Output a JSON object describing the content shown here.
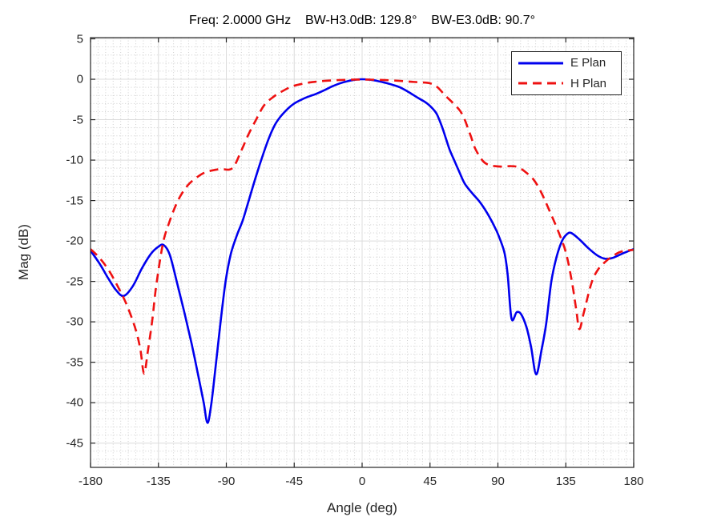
{
  "figure": {
    "title": "Freq: 2.0000 GHz    BW-H3.0dB: 129.8°    BW-E3.0dB: 90.7°"
  },
  "chart_data": {
    "type": "line",
    "title": "Freq: 2.0000 GHz    BW-H3.0dB: 129.8°    BW-E3.0dB: 90.7°",
    "xlabel": "Angle (deg)",
    "ylabel": "Mag (dB)",
    "xlim": [
      -180,
      180
    ],
    "ylim": [
      -48,
      5.15
    ],
    "x_ticks": [
      -180,
      -135,
      -90,
      -45,
      0,
      45,
      90,
      135,
      180
    ],
    "x_tick_labels": [
      "-180",
      "-135",
      "-90",
      "-45",
      "0",
      "45",
      "90",
      "135",
      "180"
    ],
    "y_ticks": [
      5,
      0,
      -5,
      -10,
      -15,
      -20,
      -25,
      -30,
      -35,
      -40,
      -45
    ],
    "y_tick_labels": [
      "5",
      "0",
      "-5",
      "-10",
      "-15",
      "-20",
      "-25",
      "-30",
      "-35",
      "-40",
      "-45"
    ],
    "grid": {
      "major": true,
      "minor": true,
      "minor_x_step_deg": 5,
      "minor_y_step_db": 1,
      "legend_position": "top-right"
    },
    "colors": {
      "e_plan": "#0000EE",
      "h_plan": "#EE1111",
      "grid_major": "#dcdcdc",
      "grid_minor": "#cfcfcf",
      "axis": "#262626"
    },
    "legend": {
      "entries": [
        {
          "label": "E Plan",
          "series": "e_plan",
          "style": "solid"
        },
        {
          "label": "H Plan",
          "series": "h_plan",
          "style": "dashed"
        }
      ]
    },
    "series": [
      {
        "name": "E Plan",
        "key": "e_plan",
        "style": "solid",
        "points": [
          [
            -180,
            -21.2
          ],
          [
            -174,
            -22.8
          ],
          [
            -168,
            -24.7
          ],
          [
            -163,
            -26.1
          ],
          [
            -158,
            -26.8
          ],
          [
            -152,
            -25.6
          ],
          [
            -146,
            -23.4
          ],
          [
            -140,
            -21.6
          ],
          [
            -135,
            -20.7
          ],
          [
            -131.5,
            -20.5
          ],
          [
            -127.5,
            -21.7
          ],
          [
            -123,
            -24.9
          ],
          [
            -118,
            -28.7
          ],
          [
            -113,
            -32.7
          ],
          [
            -108,
            -37.2
          ],
          [
            -105,
            -40.0
          ],
          [
            -102.5,
            -42.5
          ],
          [
            -100,
            -40.2
          ],
          [
            -97,
            -35.4
          ],
          [
            -94,
            -30.3
          ],
          [
            -90.5,
            -25.0
          ],
          [
            -87,
            -21.6
          ],
          [
            -83,
            -19.3
          ],
          [
            -79,
            -17.4
          ],
          [
            -75,
            -14.9
          ],
          [
            -70,
            -11.8
          ],
          [
            -66,
            -9.5
          ],
          [
            -62,
            -7.4
          ],
          [
            -58,
            -5.7
          ],
          [
            -54,
            -4.6
          ],
          [
            -49,
            -3.6
          ],
          [
            -45,
            -3.0
          ],
          [
            -40,
            -2.5
          ],
          [
            -35,
            -2.1
          ],
          [
            -31,
            -1.85
          ],
          [
            -25,
            -1.35
          ],
          [
            -20,
            -0.9
          ],
          [
            -15,
            -0.52
          ],
          [
            -10,
            -0.25
          ],
          [
            -5,
            -0.07
          ],
          [
            0,
            0
          ],
          [
            5,
            -0.06
          ],
          [
            10,
            -0.2
          ],
          [
            15,
            -0.42
          ],
          [
            20,
            -0.68
          ],
          [
            25,
            -1.0
          ],
          [
            31,
            -1.6
          ],
          [
            37,
            -2.3
          ],
          [
            42,
            -2.85
          ],
          [
            45,
            -3.3
          ],
          [
            48,
            -3.9
          ],
          [
            50,
            -4.5
          ],
          [
            53,
            -5.9
          ],
          [
            55.5,
            -7.3
          ],
          [
            58,
            -8.7
          ],
          [
            61,
            -10.0
          ],
          [
            64.5,
            -11.5
          ],
          [
            68,
            -12.9
          ],
          [
            73,
            -14.1
          ],
          [
            78.5,
            -15.3
          ],
          [
            84,
            -16.9
          ],
          [
            89,
            -18.7
          ],
          [
            92,
            -20.1
          ],
          [
            94.5,
            -21.6
          ],
          [
            96.5,
            -24.2
          ],
          [
            99,
            -29.6
          ],
          [
            102.5,
            -28.8
          ],
          [
            105.5,
            -29.1
          ],
          [
            109,
            -30.7
          ],
          [
            112,
            -33.1
          ],
          [
            115.4,
            -36.5
          ],
          [
            119,
            -33.4
          ],
          [
            122,
            -30.2
          ],
          [
            125.4,
            -25.0
          ],
          [
            129,
            -21.9
          ],
          [
            132.5,
            -20.0
          ],
          [
            135.5,
            -19.2
          ],
          [
            138.5,
            -19.0
          ],
          [
            144,
            -19.8
          ],
          [
            150,
            -20.9
          ],
          [
            156,
            -21.8
          ],
          [
            161,
            -22.2
          ],
          [
            166,
            -22.1
          ],
          [
            172,
            -21.6
          ],
          [
            180,
            -21.0
          ]
        ]
      },
      {
        "name": "H Plan",
        "key": "h_plan",
        "style": "dashed",
        "points": [
          [
            -180,
            -21.0
          ],
          [
            -174,
            -22.1
          ],
          [
            -168,
            -23.6
          ],
          [
            -162,
            -25.6
          ],
          [
            -156,
            -27.9
          ],
          [
            -150,
            -31.0
          ],
          [
            -147,
            -33.4
          ],
          [
            -144.5,
            -36.4
          ],
          [
            -142,
            -33.6
          ],
          [
            -139,
            -29.7
          ],
          [
            -136.5,
            -25.6
          ],
          [
            -132,
            -20.3
          ],
          [
            -128,
            -17.8
          ],
          [
            -124,
            -15.8
          ],
          [
            -120,
            -14.3
          ],
          [
            -115,
            -13.0
          ],
          [
            -110,
            -12.2
          ],
          [
            -105,
            -11.6
          ],
          [
            -100,
            -11.3
          ],
          [
            -94,
            -11.1
          ],
          [
            -86,
            -11.0
          ],
          [
            -80,
            -8.8
          ],
          [
            -75.5,
            -6.9
          ],
          [
            -70,
            -4.9
          ],
          [
            -64.9,
            -3.2
          ],
          [
            -59,
            -2.2
          ],
          [
            -54,
            -1.6
          ],
          [
            -48,
            -1.0
          ],
          [
            -43,
            -0.7
          ],
          [
            -38,
            -0.5
          ],
          [
            -33,
            -0.35
          ],
          [
            -25,
            -0.2
          ],
          [
            -15,
            -0.1
          ],
          [
            -5,
            -0.04
          ],
          [
            5,
            -0.05
          ],
          [
            15,
            -0.1
          ],
          [
            25,
            -0.2
          ],
          [
            32,
            -0.3
          ],
          [
            38,
            -0.38
          ],
          [
            45,
            -0.5
          ],
          [
            50,
            -1.0
          ],
          [
            55,
            -2.0
          ],
          [
            60,
            -2.9
          ],
          [
            64.9,
            -3.9
          ],
          [
            68,
            -5.0
          ],
          [
            70,
            -6.0
          ],
          [
            72,
            -7.0
          ],
          [
            75,
            -8.6
          ],
          [
            80,
            -10.1
          ],
          [
            84,
            -10.6
          ],
          [
            88,
            -10.75
          ],
          [
            93,
            -10.8
          ],
          [
            98,
            -10.75
          ],
          [
            103,
            -10.85
          ],
          [
            108.5,
            -11.5
          ],
          [
            114,
            -12.5
          ],
          [
            119,
            -14.1
          ],
          [
            124.5,
            -16.4
          ],
          [
            130,
            -18.8
          ],
          [
            135,
            -21.4
          ],
          [
            139,
            -25.0
          ],
          [
            142,
            -28.6
          ],
          [
            144,
            -30.9
          ],
          [
            147,
            -28.8
          ],
          [
            152,
            -25.2
          ],
          [
            156.5,
            -23.5
          ],
          [
            161,
            -22.6
          ],
          [
            165,
            -22.0
          ],
          [
            170.5,
            -21.4
          ],
          [
            175,
            -21.2
          ],
          [
            180,
            -21.1
          ]
        ]
      }
    ]
  }
}
